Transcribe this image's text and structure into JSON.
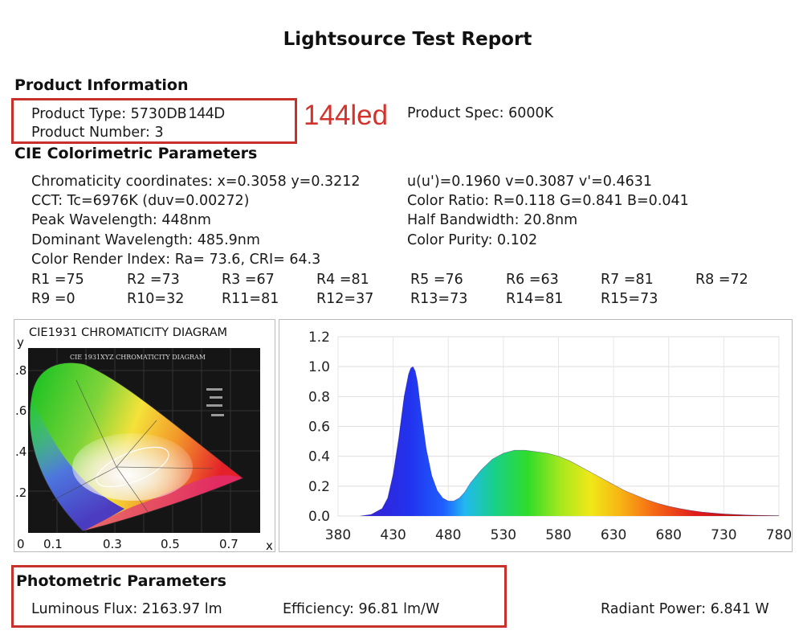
{
  "report": {
    "title": "Lightsource Test Report"
  },
  "product": {
    "heading": "Product Information",
    "type_label": "Product Type: 5730DB",
    "type_overlay": "144D",
    "number": "Product Number: 3",
    "annotation": "144led",
    "spec": "Product Spec: 6000K"
  },
  "cie": {
    "heading": "CIE Colorimetric Parameters",
    "left": [
      "Chromaticity coordinates: x=0.3058 y=0.3212",
      "CCT: Tc=6976K (duv=0.00272)",
      "Peak Wavelength: 448nm",
      "Dominant Wavelength: 485.9nm",
      "Color Render Index: Ra= 73.6, CRI= 64.3"
    ],
    "right": [
      "u(u')=0.1960 v=0.3087 v'=0.4631",
      "Color Ratio: R=0.118  G=0.841  B=0.041",
      "Half Bandwidth: 20.8nm",
      "Color Purity: 0.102"
    ],
    "r_row1": [
      "R1 =75",
      "R2 =73",
      "R3 =67",
      "R4 =81",
      "R5 =76",
      "R6 =63",
      "R7 =81",
      "R8 =72"
    ],
    "r_row2": [
      "R9 =0",
      "R10=32",
      "R11=81",
      "R12=37",
      "R13=73",
      "R14=81",
      "R15=73"
    ]
  },
  "diagram": {
    "title": "CIE1931 CHROMATICITY DIAGRAM",
    "inner_title": "CIE 1931XYZ CHROMATICITY DIAGRAM",
    "y_label": "y",
    "x_label": "x",
    "y_ticks": [
      ".8",
      ".6",
      ".4",
      ".2"
    ],
    "x_ticks": [
      "0",
      "0.1",
      "0.3",
      "0.5",
      "0.7"
    ]
  },
  "photometric": {
    "heading": "Photometric Parameters",
    "flux": "Luminous Flux: 2163.97 lm",
    "efficiency": "Efficiency: 96.81 lm/W",
    "radiant": "Radiant Power: 6.841 W"
  },
  "colors": {
    "annotation_red": "#c8312b"
  },
  "chart_data": {
    "type": "area",
    "title": "",
    "xlabel": "",
    "ylabel": "",
    "xlim": [
      380,
      780
    ],
    "ylim": [
      0,
      1.2
    ],
    "x_ticks": [
      380,
      430,
      480,
      530,
      580,
      630,
      680,
      730,
      780
    ],
    "y_ticks": [
      "0.0",
      "0.2",
      "0.4",
      "0.6",
      "0.8",
      "1.0",
      "1.2"
    ],
    "grid": true,
    "series": [
      {
        "x": [
          400,
          410,
          420,
          425,
          430,
          435,
          440,
          444,
          446,
          448,
          450,
          452,
          455,
          460,
          465,
          470,
          475,
          480,
          485,
          490,
          495,
          500,
          510,
          520,
          530,
          540,
          550,
          560,
          570,
          580,
          590,
          600,
          610,
          620,
          630,
          640,
          650,
          660,
          670,
          680,
          690,
          700,
          710,
          720,
          730,
          740,
          750,
          760,
          770,
          780
        ],
        "y": [
          0.0,
          0.01,
          0.05,
          0.12,
          0.28,
          0.52,
          0.8,
          0.95,
          0.99,
          1.0,
          0.97,
          0.9,
          0.72,
          0.45,
          0.27,
          0.17,
          0.12,
          0.1,
          0.1,
          0.12,
          0.16,
          0.22,
          0.31,
          0.38,
          0.42,
          0.44,
          0.44,
          0.43,
          0.42,
          0.4,
          0.37,
          0.33,
          0.29,
          0.25,
          0.21,
          0.17,
          0.14,
          0.11,
          0.085,
          0.065,
          0.05,
          0.037,
          0.027,
          0.02,
          0.014,
          0.01,
          0.007,
          0.005,
          0.003,
          0.002
        ]
      }
    ]
  }
}
